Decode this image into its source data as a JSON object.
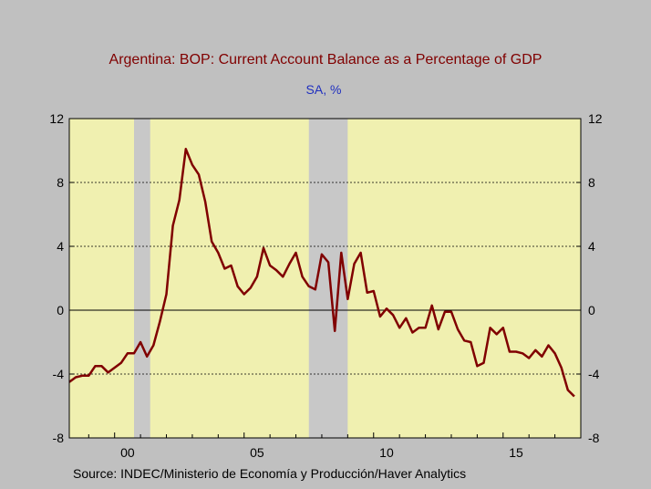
{
  "chart_data": {
    "type": "line",
    "title": "Argentina: BOP: Current Account Balance as a Percentage of GDP",
    "subtitle": "SA, %",
    "source": "Source:   INDEC/Ministerio de Economía y Producción/Haver Analytics",
    "xlim": [
      1998.25,
      2018.0
    ],
    "ylim": [
      -8,
      12
    ],
    "y_ticks": [
      -8,
      -4,
      0,
      4,
      8,
      12
    ],
    "y_tick_labels": [
      "-8",
      "-4",
      "0",
      "4",
      "8",
      "12"
    ],
    "x_ticks": [
      2000,
      2005,
      2010,
      2015
    ],
    "x_tick_labels": [
      "00",
      "05",
      "10",
      "15"
    ],
    "gridlines": "horizontal dotted",
    "recessions": [
      [
        2000.75,
        2001.375
      ],
      [
        2007.5,
        2009.0
      ]
    ],
    "colors": {
      "line": "#800000",
      "plot_bg": "#f0f0b0",
      "recession": "#c8c8c8",
      "frame_bg": "#c0c0c0"
    },
    "series": [
      {
        "x": [
          1998.25,
          1998.5,
          1998.75,
          1999.0,
          1999.25,
          1999.5,
          1999.75,
          2000.0,
          2000.25,
          2000.5,
          2000.75,
          2001.0,
          2001.25,
          2001.5,
          2001.75,
          2002.0,
          2002.25,
          2002.5,
          2002.75,
          2003.0,
          2003.25,
          2003.5,
          2003.75,
          2004.0,
          2004.25,
          2004.5,
          2004.75,
          2005.0,
          2005.25,
          2005.5,
          2005.75,
          2006.0,
          2006.25,
          2006.5,
          2006.75,
          2007.0,
          2007.25,
          2007.5,
          2007.75,
          2008.0,
          2008.25,
          2008.5,
          2008.75,
          2009.0,
          2009.25,
          2009.5,
          2009.75,
          2010.0,
          2010.25,
          2010.5,
          2010.75,
          2011.0,
          2011.25,
          2011.5,
          2011.75,
          2012.0,
          2012.25,
          2012.5,
          2012.75,
          2013.0,
          2013.25,
          2013.5,
          2013.75,
          2014.0,
          2014.25,
          2014.5,
          2014.75,
          2015.0,
          2015.25,
          2015.5,
          2015.75,
          2016.0,
          2016.25,
          2016.5,
          2016.75,
          2017.0,
          2017.25,
          2017.5,
          2017.75
        ],
        "values": [
          -4.5,
          -4.2,
          -4.1,
          -4.1,
          -3.5,
          -3.5,
          -3.9,
          -3.6,
          -3.3,
          -2.7,
          -2.7,
          -2.0,
          -2.9,
          -2.2,
          -0.7,
          1.0,
          5.3,
          6.9,
          10.1,
          9.1,
          8.5,
          6.8,
          4.3,
          3.6,
          2.6,
          2.8,
          1.5,
          1.0,
          1.4,
          2.1,
          3.9,
          2.8,
          2.5,
          2.1,
          2.9,
          3.6,
          2.1,
          1.5,
          1.3,
          3.5,
          3.0,
          -1.3,
          3.6,
          0.7,
          2.9,
          3.6,
          1.1,
          1.2,
          -0.4,
          0.1,
          -0.3,
          -1.1,
          -0.5,
          -1.4,
          -1.1,
          -1.1,
          0.3,
          -1.2,
          -0.1,
          -0.1,
          -1.2,
          -1.9,
          -2.0,
          -3.5,
          -3.3,
          -1.1,
          -1.5,
          -1.1,
          -2.6,
          -2.6,
          -2.7,
          -3.0,
          -2.5,
          -2.9,
          -2.2,
          -2.7,
          -3.6,
          -5.0,
          -5.4
        ]
      }
    ]
  }
}
